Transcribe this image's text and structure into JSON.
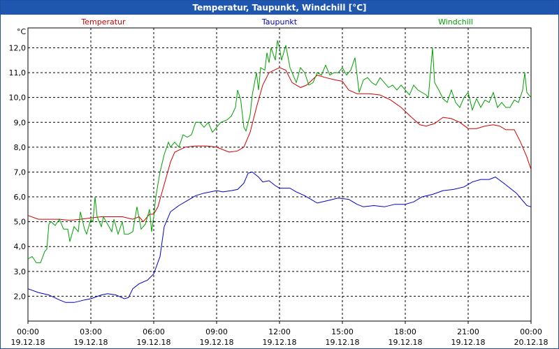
{
  "window": {
    "title": "Temperatur, Taupunkt, Windchill [°C]"
  },
  "colors": {
    "titlebar": "#1f57b0",
    "temperatur": "#d00000",
    "taupunkt": "#0000c8",
    "windchill": "#00a000",
    "grid": "#000000"
  },
  "chart_data": {
    "type": "line",
    "title": "Temperatur, Taupunkt, Windchill [°C]",
    "ylabel": "°C",
    "xlabel": "",
    "grid": true,
    "legend_placement": "top",
    "xlim": [
      0,
      24
    ],
    "ylim": [
      1.0,
      12.8
    ],
    "yticks": [
      {
        "v": 2.0,
        "label": "2,0"
      },
      {
        "v": 3.0,
        "label": "3,0"
      },
      {
        "v": 4.0,
        "label": "4,0"
      },
      {
        "v": 5.0,
        "label": "5,0"
      },
      {
        "v": 6.0,
        "label": "6,0"
      },
      {
        "v": 7.0,
        "label": "7,0"
      },
      {
        "v": 8.0,
        "label": "8,0"
      },
      {
        "v": 9.0,
        "label": "9,0"
      },
      {
        "v": 10.0,
        "label": "10,0"
      },
      {
        "v": 11.0,
        "label": "11,0"
      },
      {
        "v": 12.0,
        "label": "12,0"
      }
    ],
    "xticks": [
      {
        "h": 0,
        "time": "00:00",
        "date": "19.12.18"
      },
      {
        "h": 3,
        "time": "03:00",
        "date": "19.12.18"
      },
      {
        "h": 6,
        "time": "06:00",
        "date": "19.12.18"
      },
      {
        "h": 9,
        "time": "09:00",
        "date": "19.12.18"
      },
      {
        "h": 12,
        "time": "12:00",
        "date": "19.12.18"
      },
      {
        "h": 15,
        "time": "15:00",
        "date": "19.12.18"
      },
      {
        "h": 18,
        "time": "18:00",
        "date": "19.12.18"
      },
      {
        "h": 21,
        "time": "21:00",
        "date": "19.12.18"
      },
      {
        "h": 24,
        "time": "00:00",
        "date": "20.12.18"
      }
    ],
    "series": [
      {
        "name": "Temperatur",
        "points": [
          [
            0,
            5.25
          ],
          [
            0.5,
            5.1
          ],
          [
            1,
            5.1
          ],
          [
            1.5,
            5.1
          ],
          [
            2,
            5.05
          ],
          [
            2.5,
            5.1
          ],
          [
            3,
            5.15
          ],
          [
            3.5,
            5.2
          ],
          [
            4,
            5.2
          ],
          [
            4.5,
            5.2
          ],
          [
            5,
            5.1
          ],
          [
            5.3,
            5.2
          ],
          [
            5.5,
            5.0
          ],
          [
            5.8,
            5.3
          ],
          [
            6,
            5.3
          ],
          [
            6.2,
            5.6
          ],
          [
            6.5,
            6.5
          ],
          [
            6.8,
            7.4
          ],
          [
            7,
            7.8
          ],
          [
            7.5,
            8.0
          ],
          [
            8,
            8.05
          ],
          [
            8.5,
            8.05
          ],
          [
            9,
            8.0
          ],
          [
            9.3,
            7.9
          ],
          [
            9.6,
            7.8
          ],
          [
            10,
            7.85
          ],
          [
            10.3,
            8.0
          ],
          [
            10.6,
            8.6
          ],
          [
            10.9,
            9.6
          ],
          [
            11.2,
            10.5
          ],
          [
            11.5,
            11.0
          ],
          [
            12,
            11.2
          ],
          [
            12.3,
            11.1
          ],
          [
            12.6,
            10.6
          ],
          [
            13,
            10.4
          ],
          [
            13.3,
            10.5
          ],
          [
            13.8,
            10.9
          ],
          [
            14.2,
            10.8
          ],
          [
            14.7,
            10.7
          ],
          [
            15,
            10.65
          ],
          [
            15.3,
            10.3
          ],
          [
            15.7,
            10.15
          ],
          [
            16.3,
            10.15
          ],
          [
            16.8,
            10.1
          ],
          [
            17.3,
            9.9
          ],
          [
            17.8,
            9.6
          ],
          [
            18.3,
            9.2
          ],
          [
            18.7,
            8.9
          ],
          [
            19,
            8.85
          ],
          [
            19.4,
            8.95
          ],
          [
            19.8,
            9.2
          ],
          [
            20.2,
            9.15
          ],
          [
            20.6,
            9.0
          ],
          [
            21,
            8.75
          ],
          [
            21.4,
            8.75
          ],
          [
            21.8,
            8.85
          ],
          [
            22.2,
            8.9
          ],
          [
            22.5,
            8.85
          ],
          [
            22.8,
            8.7
          ],
          [
            23.2,
            8.7
          ],
          [
            23.5,
            8.2
          ],
          [
            23.8,
            7.6
          ],
          [
            24,
            7.1
          ]
        ]
      },
      {
        "name": "Taupunkt",
        "points": [
          [
            0,
            2.3
          ],
          [
            0.5,
            2.15
          ],
          [
            1,
            2.05
          ],
          [
            1.5,
            1.85
          ],
          [
            1.8,
            1.75
          ],
          [
            2.2,
            1.75
          ],
          [
            2.7,
            1.85
          ],
          [
            3,
            1.9
          ],
          [
            3.5,
            2.05
          ],
          [
            3.8,
            2.1
          ],
          [
            4.2,
            2.05
          ],
          [
            4.6,
            1.9
          ],
          [
            4.8,
            1.95
          ],
          [
            5,
            2.3
          ],
          [
            5.3,
            2.5
          ],
          [
            5.7,
            2.65
          ],
          [
            6,
            2.9
          ],
          [
            6.3,
            3.6
          ],
          [
            6.5,
            4.8
          ],
          [
            6.8,
            5.4
          ],
          [
            7.2,
            5.65
          ],
          [
            7.6,
            5.85
          ],
          [
            8,
            6.05
          ],
          [
            8.4,
            6.15
          ],
          [
            9,
            6.25
          ],
          [
            9.3,
            6.2
          ],
          [
            9.7,
            6.25
          ],
          [
            10,
            6.3
          ],
          [
            10.3,
            6.55
          ],
          [
            10.5,
            6.95
          ],
          [
            10.7,
            7.0
          ],
          [
            11,
            6.8
          ],
          [
            11.2,
            6.6
          ],
          [
            11.5,
            6.65
          ],
          [
            11.8,
            6.45
          ],
          [
            12,
            6.35
          ],
          [
            12.5,
            6.35
          ],
          [
            12.8,
            6.2
          ],
          [
            13.2,
            6.05
          ],
          [
            13.5,
            5.9
          ],
          [
            13.8,
            5.75
          ],
          [
            14.3,
            5.85
          ],
          [
            14.8,
            5.95
          ],
          [
            15.3,
            5.9
          ],
          [
            15.7,
            5.7
          ],
          [
            16,
            5.6
          ],
          [
            16.5,
            5.65
          ],
          [
            17,
            5.6
          ],
          [
            17.5,
            5.7
          ],
          [
            18,
            5.7
          ],
          [
            18.4,
            5.8
          ],
          [
            18.8,
            6.0
          ],
          [
            19.3,
            6.1
          ],
          [
            19.8,
            6.25
          ],
          [
            20.3,
            6.3
          ],
          [
            20.8,
            6.4
          ],
          [
            21.2,
            6.6
          ],
          [
            21.6,
            6.7
          ],
          [
            22,
            6.7
          ],
          [
            22.3,
            6.8
          ],
          [
            22.7,
            6.55
          ],
          [
            23,
            6.35
          ],
          [
            23.3,
            6.15
          ],
          [
            23.6,
            5.85
          ],
          [
            23.8,
            5.65
          ],
          [
            24,
            5.6
          ]
        ]
      },
      {
        "name": "Windchill",
        "points": [
          [
            0,
            3.5
          ],
          [
            0.2,
            3.6
          ],
          [
            0.4,
            3.35
          ],
          [
            0.6,
            3.35
          ],
          [
            0.8,
            3.8
          ],
          [
            0.9,
            3.9
          ],
          [
            1.0,
            4.9
          ],
          [
            1.1,
            5.0
          ],
          [
            1.3,
            4.85
          ],
          [
            1.5,
            5.1
          ],
          [
            1.7,
            4.7
          ],
          [
            1.9,
            4.7
          ],
          [
            2.0,
            4.2
          ],
          [
            2.2,
            4.8
          ],
          [
            2.4,
            4.6
          ],
          [
            2.5,
            5.4
          ],
          [
            2.7,
            4.7
          ],
          [
            2.8,
            4.5
          ],
          [
            3.0,
            5.1
          ],
          [
            3.1,
            5.0
          ],
          [
            3.2,
            6.0
          ],
          [
            3.3,
            5.2
          ],
          [
            3.5,
            4.8
          ],
          [
            3.6,
            5.2
          ],
          [
            3.8,
            4.9
          ],
          [
            4.0,
            4.6
          ],
          [
            4.1,
            5.1
          ],
          [
            4.3,
            4.5
          ],
          [
            4.5,
            5.0
          ],
          [
            4.6,
            4.5
          ],
          [
            4.8,
            4.5
          ],
          [
            5.0,
            4.6
          ],
          [
            5.2,
            5.6
          ],
          [
            5.4,
            4.7
          ],
          [
            5.6,
            4.9
          ],
          [
            5.8,
            5.5
          ],
          [
            5.9,
            4.6
          ],
          [
            6.0,
            5.2
          ],
          [
            6.1,
            6.0
          ],
          [
            6.3,
            7.0
          ],
          [
            6.5,
            7.7
          ],
          [
            6.7,
            8.2
          ],
          [
            6.8,
            8.0
          ],
          [
            7.0,
            8.2
          ],
          [
            7.2,
            8.0
          ],
          [
            7.4,
            8.5
          ],
          [
            7.6,
            8.4
          ],
          [
            7.8,
            8.5
          ],
          [
            8.0,
            9.0
          ],
          [
            8.2,
            9.0
          ],
          [
            8.4,
            8.8
          ],
          [
            8.6,
            9.0
          ],
          [
            8.8,
            8.6
          ],
          [
            9.0,
            8.8
          ],
          [
            9.2,
            9.0
          ],
          [
            9.5,
            9.1
          ],
          [
            9.7,
            9.25
          ],
          [
            9.9,
            9.6
          ],
          [
            10.0,
            10.3
          ],
          [
            10.15,
            9.9
          ],
          [
            10.3,
            8.8
          ],
          [
            10.4,
            8.65
          ],
          [
            10.6,
            9.3
          ],
          [
            10.7,
            10.1
          ],
          [
            10.9,
            11.0
          ],
          [
            11.0,
            10.3
          ],
          [
            11.1,
            11.2
          ],
          [
            11.3,
            11.1
          ],
          [
            11.4,
            11.8
          ],
          [
            11.5,
            11.4
          ],
          [
            11.6,
            12.0
          ],
          [
            11.8,
            11.5
          ],
          [
            11.9,
            12.3
          ],
          [
            12.0,
            12.0
          ],
          [
            12.1,
            11.5
          ],
          [
            12.3,
            12.1
          ],
          [
            12.5,
            11.2
          ],
          [
            12.6,
            11.0
          ],
          [
            12.8,
            10.6
          ],
          [
            13.0,
            11.2
          ],
          [
            13.2,
            11.0
          ],
          [
            13.4,
            10.5
          ],
          [
            13.6,
            10.6
          ],
          [
            13.8,
            11.0
          ],
          [
            14.0,
            10.9
          ],
          [
            14.2,
            11.3
          ],
          [
            14.4,
            10.9
          ],
          [
            14.6,
            11.0
          ],
          [
            14.8,
            11.0
          ],
          [
            15.0,
            11.2
          ],
          [
            15.2,
            10.9
          ],
          [
            15.4,
            11.1
          ],
          [
            15.6,
            11.6
          ],
          [
            15.8,
            10.2
          ],
          [
            16.0,
            10.7
          ],
          [
            16.2,
            10.8
          ],
          [
            16.4,
            10.6
          ],
          [
            16.6,
            10.5
          ],
          [
            16.8,
            10.8
          ],
          [
            17.0,
            10.6
          ],
          [
            17.2,
            10.4
          ],
          [
            17.4,
            10.5
          ],
          [
            17.6,
            10.3
          ],
          [
            17.8,
            10.5
          ],
          [
            18.0,
            10.3
          ],
          [
            18.2,
            10.1
          ],
          [
            18.4,
            10.5
          ],
          [
            18.6,
            10.3
          ],
          [
            18.8,
            10.2
          ],
          [
            19.0,
            10.1
          ],
          [
            19.1,
            10.0
          ],
          [
            19.2,
            11.0
          ],
          [
            19.3,
            12.0
          ],
          [
            19.4,
            10.6
          ],
          [
            19.6,
            10.3
          ],
          [
            19.8,
            9.95
          ],
          [
            20.0,
            9.8
          ],
          [
            20.2,
            10.3
          ],
          [
            20.4,
            9.8
          ],
          [
            20.6,
            9.6
          ],
          [
            20.8,
            10.0
          ],
          [
            21.0,
            10.2
          ],
          [
            21.2,
            9.5
          ],
          [
            21.4,
            9.95
          ],
          [
            21.6,
            9.6
          ],
          [
            21.8,
            9.9
          ],
          [
            22.0,
            9.8
          ],
          [
            22.2,
            10.2
          ],
          [
            22.4,
            9.6
          ],
          [
            22.6,
            9.8
          ],
          [
            22.8,
            9.6
          ],
          [
            23.0,
            9.6
          ],
          [
            23.2,
            9.9
          ],
          [
            23.4,
            9.8
          ],
          [
            23.6,
            10.3
          ],
          [
            23.7,
            11.0
          ],
          [
            23.8,
            10.2
          ],
          [
            24.0,
            10.0
          ]
        ]
      }
    ]
  }
}
